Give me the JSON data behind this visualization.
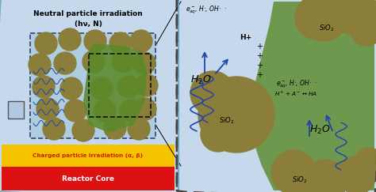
{
  "fig_width": 4.74,
  "fig_height": 2.43,
  "dpi": 100,
  "left_bg_color": "#c5d8ec",
  "left_border_color": "#7aaac8",
  "right_bg_color": "#c5d8ec",
  "right_border_color": "#444444",
  "yellow_bar_color": "#f5c200",
  "yellow_bar_text_color": "#cc2200",
  "red_bar_color": "#dd1111",
  "red_bar_text_color": "#ffffff",
  "sio2_color": "#8b7d3a",
  "green_region_color": "#5a8a2a",
  "wave_color": "#2244aa",
  "neutral_title": "Neutral particle irradiation",
  "neutral_subtitle": "(hν, N)",
  "charged_label": "Charged particle irradiation (α, β)",
  "reactor_label": "Reactor Core"
}
